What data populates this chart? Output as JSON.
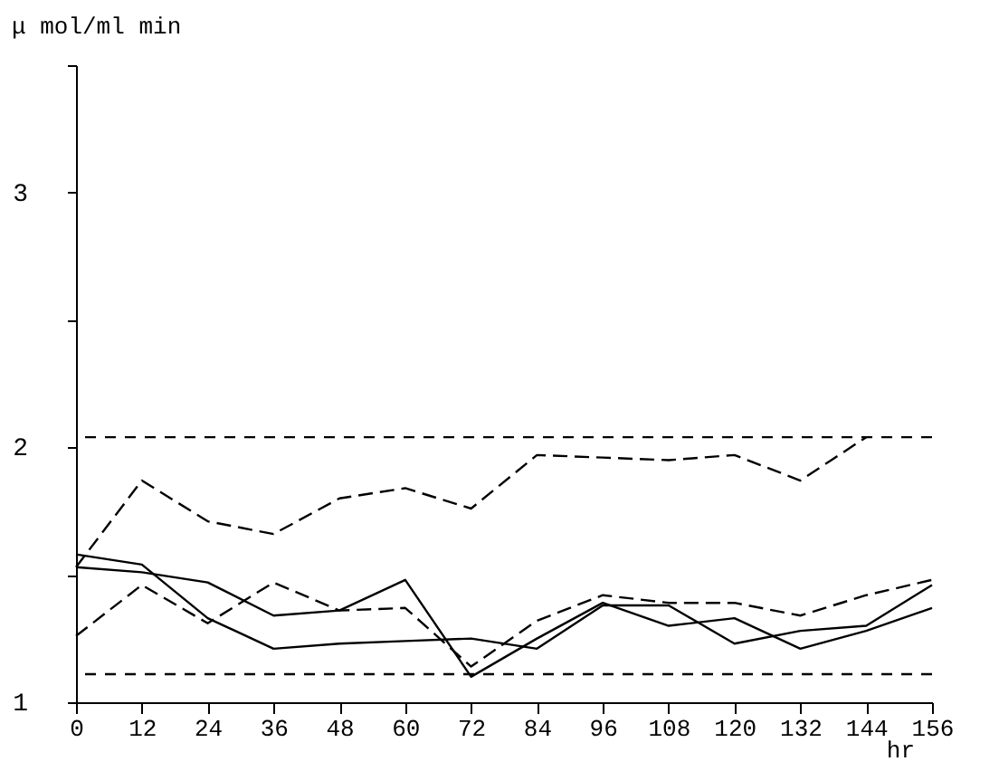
{
  "chart_data": {
    "type": "line",
    "xlabel": "hr",
    "ylabel": "μ mol/ml min",
    "x": [
      0,
      12,
      24,
      36,
      48,
      60,
      72,
      84,
      96,
      108,
      120,
      132,
      144,
      156
    ],
    "xlim": [
      0,
      156
    ],
    "xticks": [
      0,
      12,
      24,
      36,
      48,
      60,
      72,
      84,
      96,
      108,
      120,
      132,
      144,
      156
    ],
    "ylim": [
      1,
      3.5
    ],
    "yticks": [
      1,
      {
        "value": 1.5,
        "label": null
      },
      2,
      {
        "value": 2.5,
        "label": null
      },
      3,
      {
        "value": 3.5,
        "label": null
      }
    ],
    "series": [
      {
        "color": "#000000",
        "line_style": "dashed",
        "values": [
          1.53,
          1.87,
          1.71,
          1.66,
          1.8,
          1.84,
          1.76,
          1.97,
          1.96,
          1.95,
          1.97,
          1.87,
          2.04,
          null
        ]
      },
      {
        "color": "#000000",
        "line_style": "dashed",
        "values": [
          1.26,
          1.46,
          1.31,
          1.47,
          1.36,
          1.37,
          1.14,
          1.32,
          1.42,
          1.39,
          1.39,
          1.34,
          1.42,
          1.48
        ]
      },
      {
        "color": "#000000",
        "line_style": "solid",
        "values": [
          1.58,
          1.54,
          1.33,
          1.21,
          1.23,
          1.24,
          1.25,
          1.21,
          1.38,
          1.38,
          1.23,
          1.28,
          1.3,
          1.46
        ]
      },
      {
        "color": "#000000",
        "line_style": "solid",
        "values": [
          1.53,
          1.51,
          1.47,
          1.34,
          1.36,
          1.48,
          1.1,
          1.25,
          1.39,
          1.3,
          1.33,
          1.21,
          1.28,
          1.37
        ]
      }
    ],
    "ref_lines": [
      {
        "axis": "y",
        "value": 2.04,
        "color": "#000000",
        "line_style": "dashed"
      },
      {
        "axis": "y",
        "value": 1.11,
        "color": "#000000",
        "line_style": "dashed"
      }
    ]
  }
}
